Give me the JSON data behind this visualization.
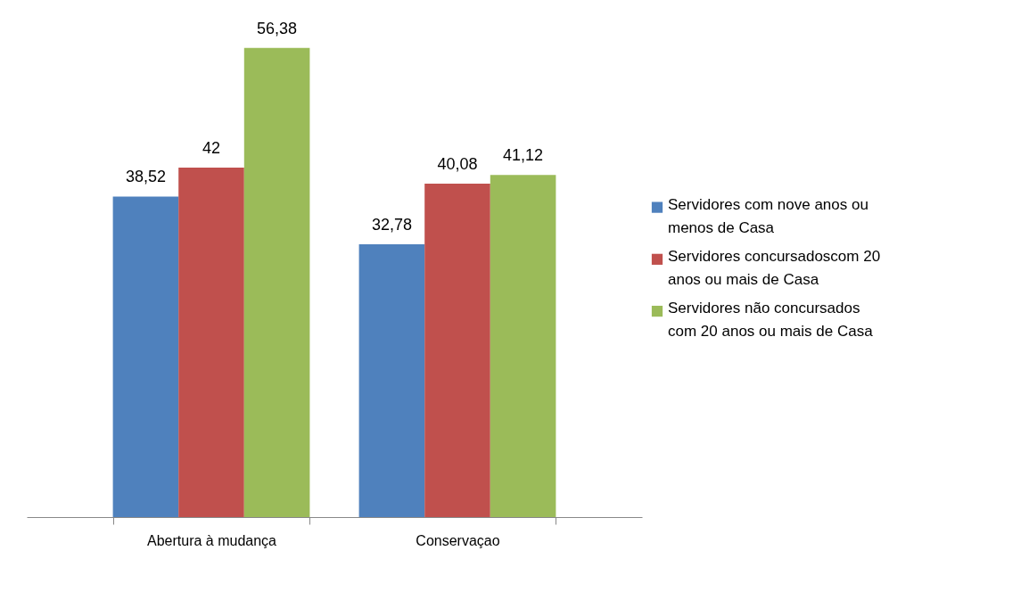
{
  "chart_data": {
    "type": "bar",
    "categories": [
      "Abertura à mudança",
      "Conservaçao"
    ],
    "series": [
      {
        "name": "Servidores com nove anos ou menos de Casa",
        "color": "#4f81bd",
        "values": [
          38.52,
          32.78
        ],
        "value_labels": [
          "38,52",
          "32,78"
        ]
      },
      {
        "name": "Servidores concursadoscom 20 anos ou mais de Casa",
        "color": "#c0504d",
        "values": [
          42,
          40.08
        ],
        "value_labels": [
          "42",
          "40,08"
        ]
      },
      {
        "name": "Servidores não concursados com 20 anos ou mais de Casa",
        "color": "#9bbb59",
        "values": [
          56.38,
          41.12
        ],
        "value_labels": [
          "56,38",
          "41,12"
        ]
      }
    ],
    "legend": "right",
    "grid": false,
    "tick_labels": "x"
  }
}
